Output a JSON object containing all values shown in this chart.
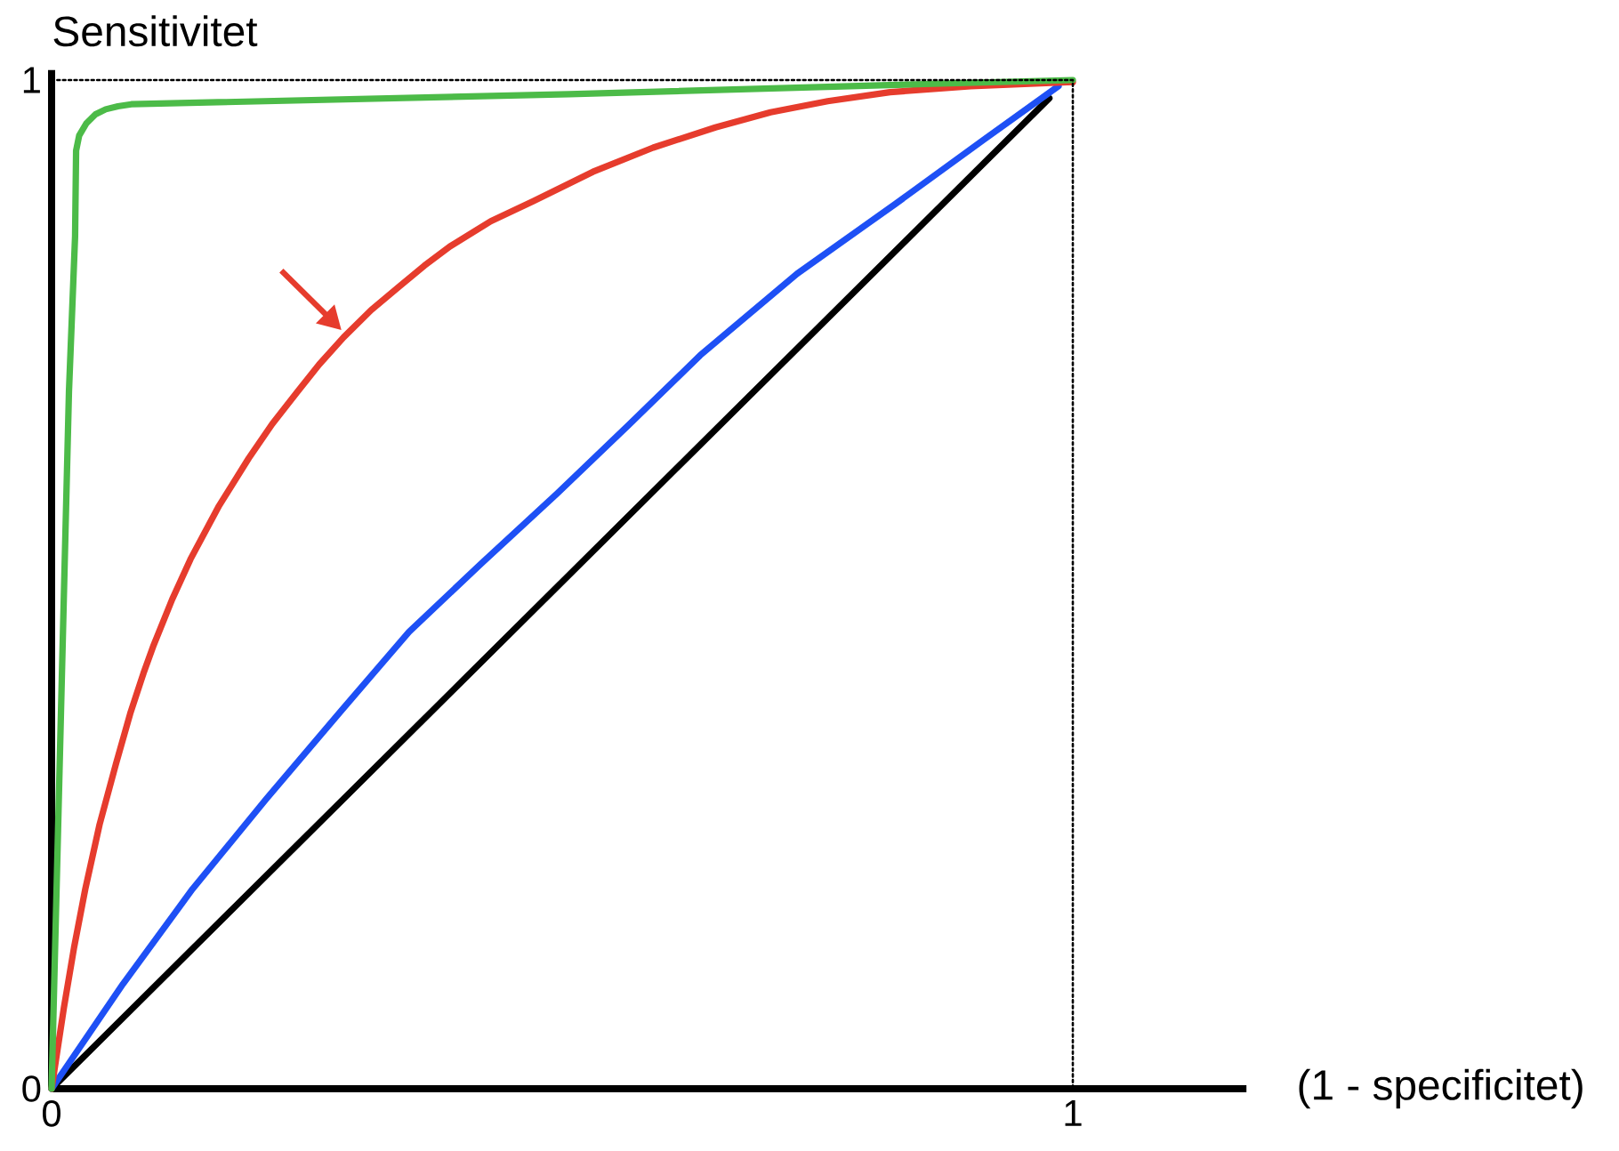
{
  "chart_data": {
    "type": "line",
    "xlabel": "(1 - specificitet)",
    "ylabel": "Sensitivitet",
    "xlim": [
      0,
      1.17
    ],
    "ylim": [
      0,
      1.01
    ],
    "xticks": [
      0,
      1
    ],
    "yticks": [
      0,
      1
    ],
    "line_style": "solid",
    "series": [
      {
        "color": "#000000",
        "x": [
          0,
          0.977
        ],
        "values": [
          0,
          0.982
        ]
      },
      {
        "color": "#1e50f5",
        "x": [
          0,
          0.07,
          0.138,
          0.21,
          0.283,
          0.35,
          0.42,
          0.495,
          0.565,
          0.635,
          0.73,
          0.826,
          0.913,
          0.986
        ],
        "values": [
          0,
          0.104,
          0.198,
          0.287,
          0.374,
          0.453,
          0.52,
          0.59,
          0.658,
          0.727,
          0.808,
          0.877,
          0.941,
          0.994
        ]
      },
      {
        "color": "#e63c2d",
        "x": [
          0,
          0.012,
          0.022,
          0.033,
          0.047,
          0.063,
          0.077,
          0.09,
          0.1,
          0.118,
          0.136,
          0.164,
          0.193,
          0.216,
          0.24,
          0.262,
          0.286,
          0.313,
          0.34,
          0.365,
          0.39,
          0.43,
          0.472,
          0.53,
          0.589,
          0.65,
          0.704,
          0.76,
          0.821,
          0.9,
          1
        ],
        "values": [
          0,
          0.08,
          0.14,
          0.198,
          0.262,
          0.322,
          0.372,
          0.412,
          0.44,
          0.485,
          0.525,
          0.578,
          0.625,
          0.659,
          0.69,
          0.718,
          0.745,
          0.772,
          0.795,
          0.816,
          0.835,
          0.86,
          0.88,
          0.909,
          0.933,
          0.953,
          0.968,
          0.979,
          0.988,
          0.994,
          0.998
        ]
      },
      {
        "color": "#4cbb48",
        "x": [
          0,
          0.017,
          0.023,
          0.024,
          0.027,
          0.034,
          0.043,
          0.053,
          0.065,
          0.078,
          0.507,
          0.855,
          1
        ],
        "values": [
          0,
          0.691,
          0.845,
          0.93,
          0.945,
          0.957,
          0.966,
          0.971,
          0.974,
          0.976,
          0.986,
          0.996,
          1
        ]
      },
      {
        "color": "#000000",
        "line_style": "dotted",
        "x": [
          0,
          1,
          1
        ],
        "values": [
          1,
          1,
          0
        ]
      }
    ]
  }
}
